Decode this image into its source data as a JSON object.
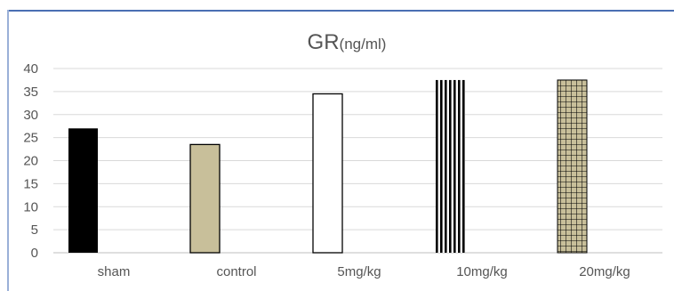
{
  "chart_data": {
    "type": "bar",
    "title": "GR",
    "title_unit": "(ng/ml)",
    "categories": [
      "sham",
      "control",
      "5mg/kg",
      "10mg/kg",
      "20mg/kg"
    ],
    "values": [
      27,
      23.5,
      34.5,
      37.5,
      37.5
    ],
    "ylim": [
      0,
      40
    ],
    "yticks": [
      "0",
      "5",
      "10",
      "15",
      "20",
      "25",
      "30",
      "35",
      "40"
    ],
    "grid": true,
    "legend": "none",
    "bar_styles": [
      "solid-black",
      "solid-tan",
      "white-outline",
      "vertical-stripes",
      "grid-check"
    ],
    "colors": {
      "black": "#000000",
      "tan": "#c8bf9a",
      "grid_line": "#d9d9d9",
      "axis": "#bfbfbf",
      "text": "#555555",
      "frame": "#4a6fb3"
    }
  }
}
